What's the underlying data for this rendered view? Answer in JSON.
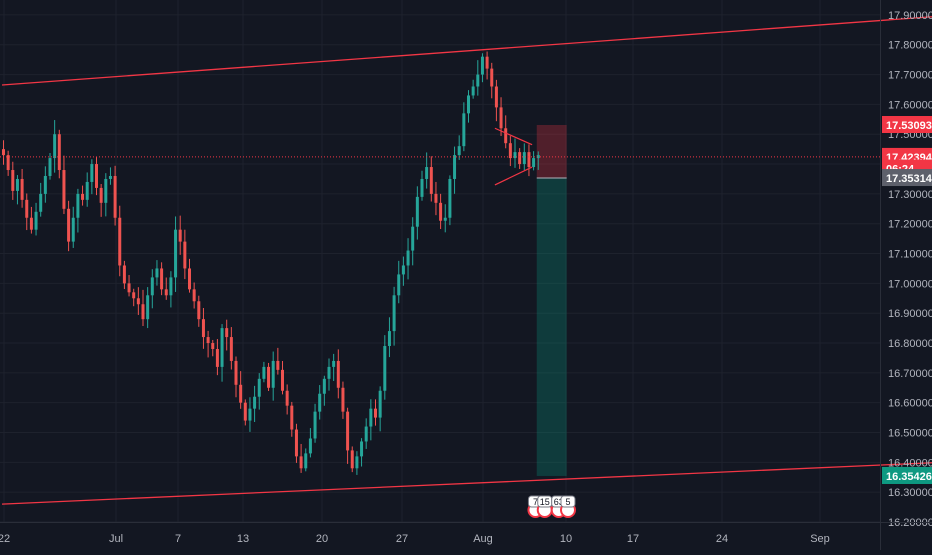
{
  "chart_data": {
    "type": "candlestick",
    "ylim": [
      16.2,
      17.95
    ],
    "y_ticks": [
      "17.90000",
      "17.80000",
      "17.70000",
      "17.60000",
      "17.50000",
      "17.40000",
      "17.30000",
      "17.20000",
      "17.10000",
      "17.00000",
      "16.90000",
      "16.80000",
      "16.70000",
      "16.60000",
      "16.50000",
      "16.40000",
      "16.30000",
      "16.20000"
    ],
    "x_ticks": [
      "22",
      "Jul",
      "7",
      "13",
      "20",
      "27",
      "Aug",
      "10",
      "17",
      "24",
      "Sep"
    ],
    "price_tags": [
      {
        "label": "17.53093",
        "value": 17.53093,
        "color": "#f23645"
      },
      {
        "label": "17.42394",
        "value": 17.42394,
        "color": "#f23645"
      },
      {
        "label": "06:24",
        "value": 17.385,
        "color": "#f23645"
      },
      {
        "label": "17.35314",
        "value": 17.35314,
        "color": "#5d606b"
      },
      {
        "label": "16.35426",
        "value": 16.35426,
        "color": "#0e9981"
      }
    ],
    "current_price": 17.42394,
    "channel_upper": {
      "start": [
        0,
        17.665
      ],
      "end": [
        166,
        17.855
      ]
    },
    "channel_lower": {
      "start": [
        0,
        16.26
      ],
      "end": [
        166,
        16.375
      ]
    },
    "position": {
      "start_bar": 115,
      "end_bar": 121,
      "entry": 17.35314,
      "stop": 17.53093,
      "target": 16.35426
    },
    "triangle": {
      "start_bar": 106,
      "end_bar": 114,
      "upper": [
        17.52,
        17.465
      ],
      "lower": [
        17.33,
        17.39
      ]
    },
    "closes": [
      17.43,
      17.38,
      17.31,
      17.35,
      17.28,
      17.22,
      17.18,
      17.24,
      17.3,
      17.36,
      17.42,
      17.5,
      17.38,
      17.25,
      17.14,
      17.22,
      17.3,
      17.28,
      17.34,
      17.4,
      17.32,
      17.27,
      17.35,
      17.36,
      17.22,
      17.06,
      17.0,
      16.97,
      16.95,
      16.93,
      16.88,
      16.96,
      17.02,
      17.05,
      16.98,
      16.96,
      17.02,
      17.18,
      17.14,
      17.05,
      16.98,
      16.94,
      16.88,
      16.82,
      16.8,
      16.78,
      16.72,
      16.85,
      16.82,
      16.74,
      16.66,
      16.6,
      16.54,
      16.58,
      16.62,
      16.68,
      16.72,
      16.65,
      16.74,
      16.71,
      16.64,
      16.59,
      16.51,
      16.42,
      16.38,
      16.43,
      16.48,
      16.57,
      16.63,
      16.68,
      16.72,
      16.74,
      16.65,
      16.57,
      16.44,
      16.38,
      16.42,
      16.47,
      16.52,
      16.58,
      16.55,
      16.64,
      16.79,
      16.84,
      16.96,
      17.03,
      17.06,
      17.11,
      17.19,
      17.29,
      17.35,
      17.39,
      17.3,
      17.27,
      17.21,
      17.22,
      17.35,
      17.43,
      17.46,
      17.57,
      17.63,
      17.66,
      17.7,
      17.76,
      17.72,
      17.66,
      17.59,
      17.52,
      17.47,
      17.42,
      17.44,
      17.4,
      17.44,
      17.39,
      17.42,
      17.43
    ]
  },
  "markers": [
    {
      "label": "7",
      "bar": 113
    },
    {
      "label": "15",
      "bar": 115
    },
    {
      "label": "63",
      "bar": 118
    },
    {
      "label": "5",
      "bar": 120
    }
  ]
}
